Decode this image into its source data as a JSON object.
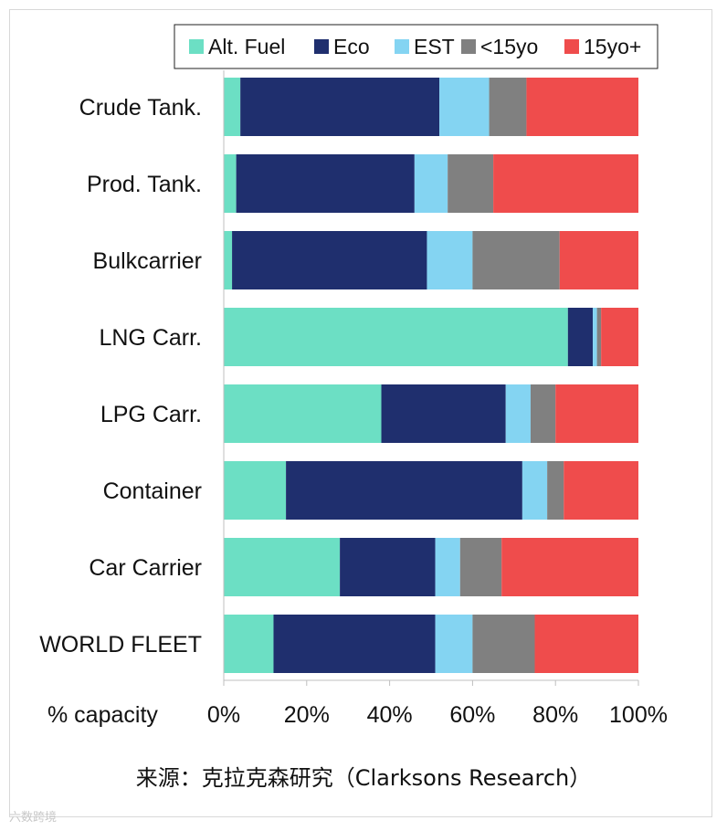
{
  "chart_data": {
    "type": "bar",
    "orientation": "horizontal",
    "stacked": true,
    "categories": [
      "Crude Tank.",
      "Prod. Tank.",
      "Bulkcarrier",
      "LNG Carr.",
      "LPG Carr.",
      "Container",
      "Car Carrier",
      "WORLD FLEET"
    ],
    "series": [
      {
        "name": "Alt. Fuel",
        "color": "#6cdfc4",
        "values": [
          4,
          3,
          2,
          83,
          38,
          15,
          28,
          12
        ]
      },
      {
        "name": "Eco",
        "color": "#1f2f6e",
        "values": [
          48,
          43,
          47,
          6,
          30,
          57,
          23,
          39
        ]
      },
      {
        "name": "EST",
        "color": "#84d4f2",
        "values": [
          12,
          8,
          11,
          1,
          6,
          6,
          6,
          9
        ]
      },
      {
        "name": "<15yo",
        "color": "#808080",
        "values": [
          9,
          11,
          21,
          1,
          6,
          4,
          10,
          15
        ]
      },
      {
        "name": "15yo+",
        "color": "#ef4c4c",
        "values": [
          27,
          35,
          19,
          9,
          20,
          18,
          33,
          25
        ]
      }
    ],
    "xlabel": "% capacity",
    "xlim": [
      0,
      100
    ],
    "xticks": [
      "0%",
      "20%",
      "40%",
      "60%",
      "80%",
      "100%"
    ],
    "legend_position": "top",
    "grid": false
  },
  "caption": "来源：克拉克森研究（Clarksons Research）",
  "watermark": "六数跨境"
}
